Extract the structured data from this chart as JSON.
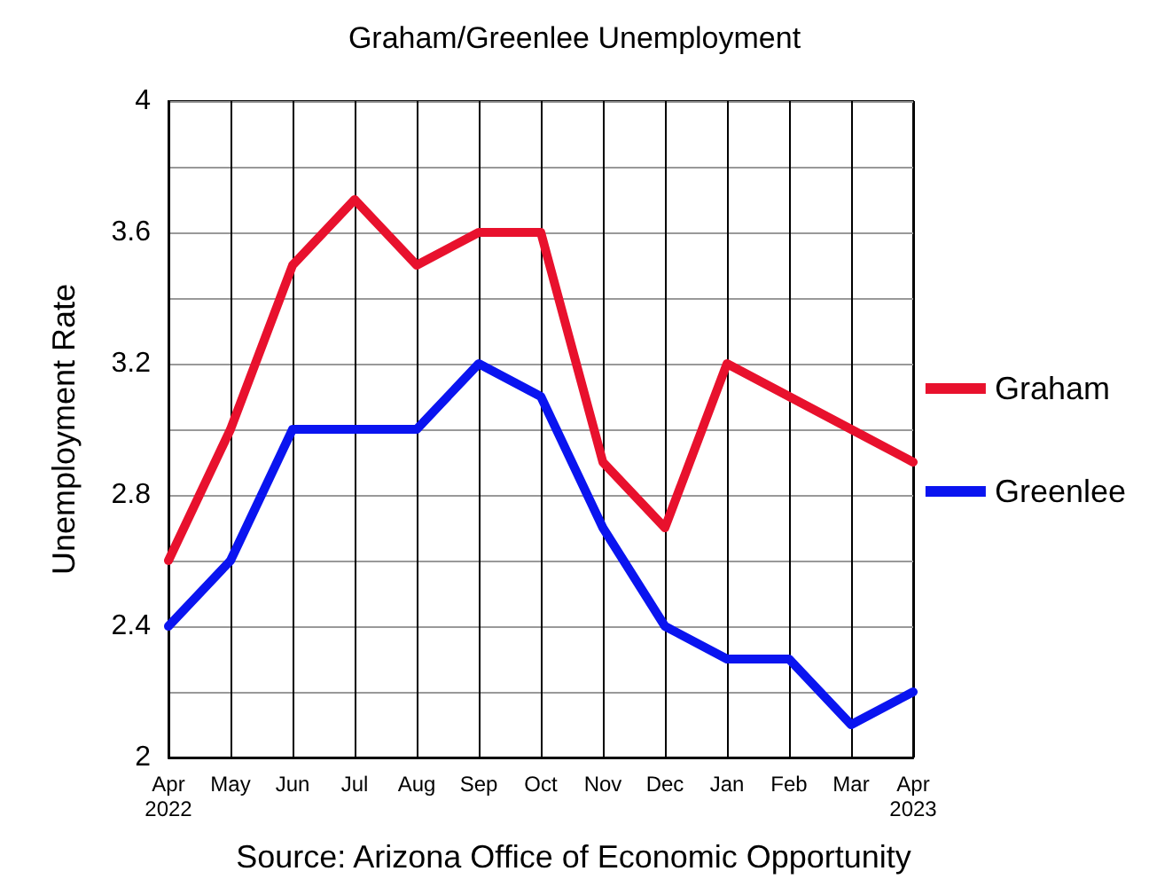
{
  "chart_data": {
    "type": "line",
    "title": "Graham/Greenlee Unemployment",
    "ylabel": "Unemployment Rate",
    "categories": [
      "Apr\n2022",
      "May",
      "Jun",
      "Jul",
      "Aug",
      "Sep",
      "Oct",
      "Nov",
      "Dec",
      "Jan",
      "Feb",
      "Mar",
      "Apr\n2023"
    ],
    "series": [
      {
        "name": "Graham",
        "color": "#e8112d",
        "values": [
          2.6,
          3.0,
          3.5,
          3.7,
          3.5,
          3.6,
          3.6,
          2.9,
          2.7,
          3.2,
          3.1,
          3.0,
          2.9
        ]
      },
      {
        "name": "Greenlee",
        "color": "#0a14f0",
        "values": [
          2.4,
          2.6,
          3.0,
          3.0,
          3.0,
          3.2,
          3.1,
          2.7,
          2.4,
          2.3,
          2.3,
          2.1,
          2.2
        ]
      }
    ],
    "ylim": [
      2,
      4
    ],
    "yticks": [
      2,
      {
        "value": 2.2,
        "label": null
      },
      2.4,
      {
        "value": 2.6,
        "label": null
      },
      2.8,
      {
        "value": 3.0,
        "label": null
      },
      3.2,
      {
        "value": 3.4,
        "label": null
      },
      3.6,
      {
        "value": 3.8,
        "label": null
      },
      4
    ],
    "annotations": [
      "Source: Arizona Office of Economic Opportunity"
    ],
    "grid": true,
    "legend": "right",
    "marker": "none",
    "line_style": "solid"
  }
}
